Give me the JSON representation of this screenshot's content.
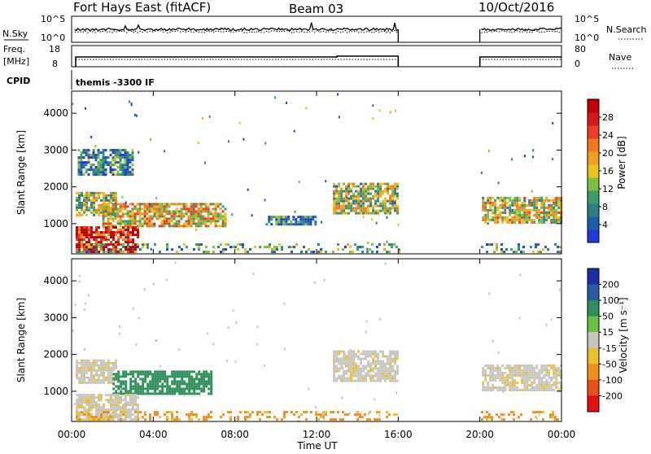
{
  "header": {
    "station": "Fort Hays East (fitACF)",
    "beam": "Beam 03",
    "date": "10/Oct/2016"
  },
  "top_panels": {
    "nsky_label": "N.Sky",
    "nsky_ticks": [
      "10^5",
      "10^0"
    ],
    "nsearch_label": "N.Search",
    "nsearch_ticks": [
      "10^5",
      "10^0"
    ],
    "freq_label": "Freq.",
    "freq_unit": "[MHz]",
    "freq_ticks": [
      "18",
      "8"
    ],
    "nave_label": "Nave",
    "nave_ticks": [
      "80",
      "0"
    ],
    "cpid_label": "CPID",
    "cpid_value": "themis -3300 IF"
  },
  "chart_data": [
    {
      "type": "heatmap",
      "name": "power",
      "ylabel": "Slant Range [km]",
      "xlabel": "Time UT",
      "x_ticks": [
        "00:00",
        "04:00",
        "08:00",
        "12:00",
        "16:00",
        "20:00",
        "00:00"
      ],
      "x_hours": [
        0,
        4,
        8,
        12,
        16,
        20,
        24
      ],
      "y_ticks": [
        1000,
        2000,
        3000,
        4000
      ],
      "ylim": [
        180,
        4600
      ],
      "colorbar": {
        "label": "Power [dB]",
        "ticks": [
          "4",
          "8",
          "12",
          "16",
          "20",
          "24",
          "28"
        ],
        "range": [
          0,
          32
        ],
        "colors": [
          "#1f3bd6",
          "#1e5fa8",
          "#2e7f82",
          "#3f9a6a",
          "#7fbf3f",
          "#e8c21e",
          "#f0a020",
          "#f07820",
          "#e84020",
          "#d81818",
          "#c00000"
        ]
      },
      "data_gaps": [
        [
          16.0,
          20.0
        ]
      ],
      "regions": [
        {
          "t": [
            0.2,
            2.2
          ],
          "r": [
            1200,
            1800
          ],
          "level": 0.45
        },
        {
          "t": [
            1.5,
            7.5
          ],
          "r": [
            900,
            1550
          ],
          "level": 0.55
        },
        {
          "t": [
            0.2,
            3.2
          ],
          "r": [
            200,
            900
          ],
          "level": 0.85
        },
        {
          "t": [
            0.3,
            3.0
          ],
          "r": [
            2300,
            3000
          ],
          "level": 0.2
        },
        {
          "t": [
            12.8,
            16.0
          ],
          "r": [
            1250,
            2100
          ],
          "level": 0.45
        },
        {
          "t": [
            20.1,
            24.0
          ],
          "r": [
            1000,
            1700
          ],
          "level": 0.5
        },
        {
          "t": [
            9.5,
            12.0
          ],
          "r": [
            950,
            1200
          ],
          "level": 0.2
        },
        {
          "t": [
            0.2,
            24.0
          ],
          "r": [
            200,
            400
          ],
          "level": 0.3
        }
      ]
    },
    {
      "type": "heatmap",
      "name": "velocity",
      "ylabel": "Slant Range [km]",
      "xlabel": "Time UT",
      "x_ticks": [
        "00:00",
        "04:00",
        "08:00",
        "12:00",
        "16:00",
        "20:00",
        "00:00"
      ],
      "x_hours": [
        0,
        4,
        8,
        12,
        16,
        20,
        24
      ],
      "y_ticks": [
        1000,
        2000,
        3000,
        4000
      ],
      "ylim": [
        180,
        4600
      ],
      "colorbar": {
        "label": "Velocity [m s⁻¹]",
        "ticks": [
          "200",
          "100",
          "50",
          "15",
          "-15",
          "-50",
          "-100",
          "-200"
        ],
        "colors": [
          "#1a2fa0",
          "#2a5ba8",
          "#2f8f5a",
          "#6cc040",
          "#c8c8c0",
          "#e8c030",
          "#f09020",
          "#e85020",
          "#e01010"
        ]
      },
      "data_gaps": [
        [
          16.0,
          20.0
        ]
      ],
      "regions": [
        {
          "t": [
            0.2,
            2.2
          ],
          "r": [
            1200,
            1800
          ],
          "v": -5
        },
        {
          "t": [
            2.0,
            6.8
          ],
          "r": [
            900,
            1550
          ],
          "v": 60
        },
        {
          "t": [
            0.2,
            3.2
          ],
          "r": [
            200,
            900
          ],
          "v": -5
        },
        {
          "t": [
            12.8,
            16.0
          ],
          "r": [
            1250,
            2100
          ],
          "v": -5
        },
        {
          "t": [
            20.1,
            24.0
          ],
          "r": [
            1000,
            1700
          ],
          "v": -5
        },
        {
          "t": [
            0.2,
            24.0
          ],
          "r": [
            200,
            400
          ],
          "v": -40
        }
      ]
    }
  ]
}
